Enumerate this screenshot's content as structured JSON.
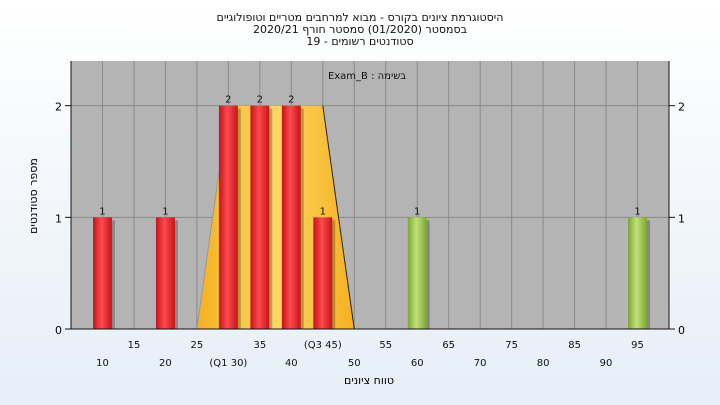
{
  "title_lines": [
    "היסטוגרמת ציונים בקורס - מבוא למרחבים מטריים וטופולוגיים",
    "בסמסטר  (01/2020)  סמסטר חורף  2020/21",
    "סטודנטים רשומים - 19"
  ],
  "chart_data": {
    "type": "bar",
    "annotation": "בשימה : Exam_B",
    "xlabel": "טווח ציונים",
    "ylabel": "מספר סטודנטים",
    "xlim": [
      5,
      100
    ],
    "ylim": [
      0,
      2.4
    ],
    "y_ticks": [
      0,
      1,
      2
    ],
    "x_ticks_row1": [
      "15",
      "25",
      "35",
      "45",
      "55",
      "65",
      "75",
      "85",
      "95"
    ],
    "x_ticks_row2": [
      "10",
      "20",
      "(Q1 30)",
      "40",
      "50",
      "60",
      "70",
      "80",
      "90"
    ],
    "q3_label": "(Q3 45)",
    "bars": [
      {
        "x": 10,
        "value": 1,
        "label": "1",
        "color": "red"
      },
      {
        "x": 20,
        "value": 1,
        "label": "1",
        "color": "red"
      },
      {
        "x": 30,
        "value": 2,
        "label": "2",
        "color": "red"
      },
      {
        "x": 35,
        "value": 2,
        "label": "2",
        "color": "red"
      },
      {
        "x": 40,
        "value": 2,
        "label": "2",
        "color": "red"
      },
      {
        "x": 45,
        "value": 1,
        "label": "1",
        "color": "red"
      },
      {
        "x": 60,
        "value": 1,
        "label": "1",
        "color": "green"
      },
      {
        "x": 95,
        "value": 1,
        "label": "1",
        "color": "green"
      }
    ],
    "box_plot": {
      "q1": 30,
      "q3": 45,
      "box_level": 2,
      "whisker_left": 25,
      "whisker_right": 50
    },
    "colors": {
      "plot_bg": "#b4b4b4",
      "grid": "#8a8a8a",
      "red_bar": "#e8262b",
      "green_bar": "#9ccc4a",
      "box_fill": "#ffc83a"
    }
  }
}
